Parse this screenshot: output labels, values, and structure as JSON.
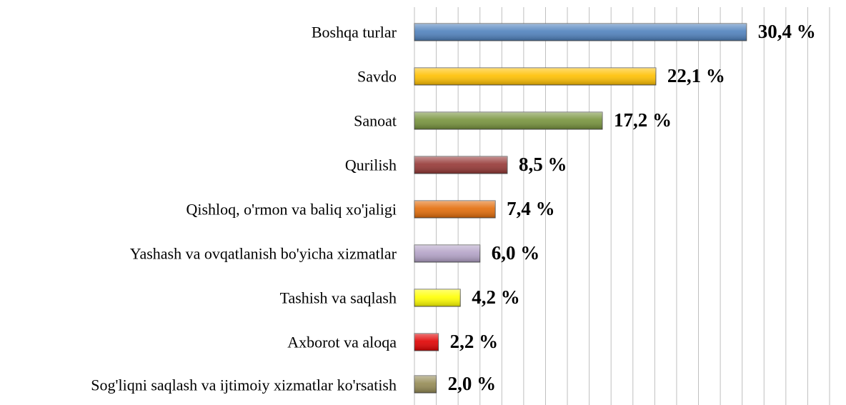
{
  "chart_data": {
    "type": "bar",
    "orientation": "horizontal",
    "categories": [
      "Boshqa turlar",
      "Savdo",
      "Sanoat",
      "Qurilish",
      "Qishloq, o'rmon va baliq xo'jaligi",
      "Yashash va ovqatlanish bo'yicha xizmatlar",
      "Tashish va saqlash",
      "Axborot va aloqa",
      "Sog'liqni saqlash va ijtimoiy xizmatlar ko'rsatish"
    ],
    "values": [
      30.4,
      22.1,
      17.2,
      8.5,
      7.4,
      6.0,
      4.2,
      2.2,
      2.0
    ],
    "value_labels": [
      "30,4 %",
      "22,1 %",
      "17,2 %",
      "8,5 %",
      "7,4 %",
      "6,0 %",
      "4,2 %",
      "2,2 %",
      "2,0 %"
    ],
    "colors": [
      "#4f81bd",
      "#ffc000",
      "#77933c",
      "#953735",
      "#e36c09",
      "#b3a2c7",
      "#ffff00",
      "#e00000",
      "#948a54"
    ],
    "xlim": [
      0,
      38
    ],
    "xticks": [
      0,
      2,
      4,
      6,
      8,
      10,
      12,
      14,
      16,
      18,
      20,
      22,
      24,
      26,
      28,
      30,
      32,
      34,
      36,
      38
    ],
    "grid": true
  }
}
